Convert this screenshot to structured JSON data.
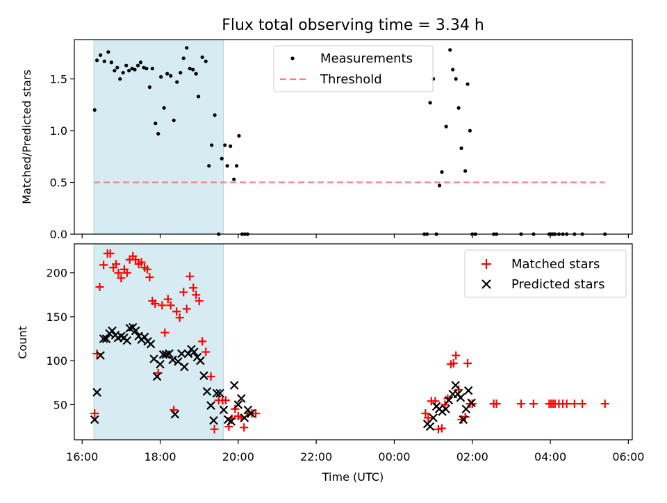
{
  "title": "Flux total observing time = 3.34 h",
  "colors": {
    "span": "#add8e6",
    "threshold": "#ff7f7f",
    "measurement": "#000000",
    "matched": "#ff0000",
    "predicted": "#000000"
  },
  "x_axis": {
    "label": "Time (UTC)",
    "range_hours": [
      15.8,
      30.1
    ],
    "ticks": [
      {
        "t": 16,
        "label": "16:00"
      },
      {
        "t": 18,
        "label": "18:00"
      },
      {
        "t": 20,
        "label": "20:00"
      },
      {
        "t": 22,
        "label": "22:00"
      },
      {
        "t": 24,
        "label": "00:00"
      },
      {
        "t": 26,
        "label": "02:00"
      },
      {
        "t": 28,
        "label": "04:00"
      },
      {
        "t": 30,
        "label": "06:00"
      }
    ]
  },
  "highlight_span_hours": [
    16.3,
    19.62
  ],
  "chart_data": [
    {
      "type": "scatter",
      "panel": "top",
      "ylabel": "Matched/Predicted stars",
      "ylim": [
        0,
        1.88
      ],
      "yticks": [
        {
          "v": 0.0,
          "label": "0.0"
        },
        {
          "v": 0.5,
          "label": "0.5"
        },
        {
          "v": 1.0,
          "label": "1.0"
        },
        {
          "v": 1.5,
          "label": "1.5"
        }
      ],
      "legend": {
        "position": "top-center",
        "measurements": "Measurements",
        "threshold": "Threshold"
      },
      "threshold": {
        "value": 0.5,
        "x_range": [
          16.3,
          29.4
        ]
      },
      "measurements": [
        [
          16.32,
          1.2
        ],
        [
          16.38,
          1.68
        ],
        [
          16.47,
          1.73
        ],
        [
          16.57,
          1.67
        ],
        [
          16.67,
          1.76
        ],
        [
          16.75,
          1.66
        ],
        [
          16.83,
          1.58
        ],
        [
          16.9,
          1.61
        ],
        [
          16.97,
          1.5
        ],
        [
          17.05,
          1.56
        ],
        [
          17.13,
          1.63
        ],
        [
          17.2,
          1.58
        ],
        [
          17.28,
          1.6
        ],
        [
          17.35,
          1.59
        ],
        [
          17.43,
          1.63
        ],
        [
          17.5,
          1.66
        ],
        [
          17.58,
          1.61
        ],
        [
          17.65,
          1.6
        ],
        [
          17.73,
          1.42
        ],
        [
          17.8,
          1.6
        ],
        [
          17.88,
          1.07
        ],
        [
          17.95,
          0.97
        ],
        [
          18.02,
          1.52
        ],
        [
          18.1,
          1.22
        ],
        [
          18.18,
          1.55
        ],
        [
          18.27,
          1.53
        ],
        [
          18.35,
          1.1
        ],
        [
          18.43,
          1.47
        ],
        [
          18.52,
          1.56
        ],
        [
          18.6,
          1.7
        ],
        [
          18.68,
          1.8
        ],
        [
          18.76,
          1.6
        ],
        [
          18.84,
          1.59
        ],
        [
          18.92,
          1.55
        ],
        [
          18.98,
          1.33
        ],
        [
          19.08,
          1.71
        ],
        [
          19.17,
          1.67
        ],
        [
          19.25,
          0.66
        ],
        [
          19.32,
          0.86
        ],
        [
          19.4,
          1.15
        ],
        [
          19.5,
          0.0
        ],
        [
          19.58,
          0.73
        ],
        [
          19.66,
          0.86
        ],
        [
          19.72,
          0.66
        ],
        [
          19.8,
          0.85
        ],
        [
          19.89,
          0.53
        ],
        [
          19.96,
          0.66
        ],
        [
          20.02,
          0.95
        ],
        [
          20.1,
          0.0
        ],
        [
          20.17,
          0.0
        ],
        [
          20.24,
          0.0
        ],
        [
          24.77,
          0.0
        ],
        [
          24.84,
          0.0
        ],
        [
          24.92,
          1.27
        ],
        [
          25.0,
          1.5
        ],
        [
          25.08,
          0.0
        ],
        [
          25.16,
          0.47
        ],
        [
          25.22,
          0.6
        ],
        [
          25.33,
          1.04
        ],
        [
          25.43,
          1.78
        ],
        [
          25.5,
          1.59
        ],
        [
          25.58,
          1.5
        ],
        [
          25.65,
          1.22
        ],
        [
          25.72,
          0.83
        ],
        [
          25.82,
          0.61
        ],
        [
          25.88,
          1.45
        ],
        [
          25.94,
          1.0
        ],
        [
          26.0,
          0.0
        ],
        [
          26.08,
          0.0
        ],
        [
          26.55,
          0.0
        ],
        [
          26.62,
          0.0
        ],
        [
          27.25,
          0.0
        ],
        [
          27.57,
          0.0
        ],
        [
          27.97,
          0.0
        ],
        [
          28.02,
          0.0
        ],
        [
          28.07,
          0.0
        ],
        [
          28.12,
          0.0
        ],
        [
          28.22,
          0.0
        ],
        [
          28.32,
          0.0
        ],
        [
          28.42,
          0.0
        ],
        [
          28.62,
          0.0
        ],
        [
          28.82,
          0.0
        ],
        [
          29.4,
          0.0
        ]
      ]
    },
    {
      "type": "scatter",
      "panel": "bottom",
      "ylabel": "Count",
      "ylim": [
        10,
        233
      ],
      "yticks": [
        {
          "v": 50,
          "label": "50"
        },
        {
          "v": 100,
          "label": "100"
        },
        {
          "v": 150,
          "label": "150"
        },
        {
          "v": 200,
          "label": "200"
        }
      ],
      "legend": {
        "position": "top-right",
        "matched": "Matched stars",
        "predicted": "Predicted stars"
      },
      "matched": [
        [
          16.32,
          40
        ],
        [
          16.38,
          108
        ],
        [
          16.45,
          184
        ],
        [
          16.55,
          209
        ],
        [
          16.65,
          222
        ],
        [
          16.72,
          222
        ],
        [
          16.8,
          206
        ],
        [
          16.87,
          210
        ],
        [
          16.93,
          200
        ],
        [
          17.0,
          194
        ],
        [
          17.08,
          204
        ],
        [
          17.15,
          200
        ],
        [
          17.22,
          215
        ],
        [
          17.3,
          219
        ],
        [
          17.37,
          215
        ],
        [
          17.45,
          210
        ],
        [
          17.52,
          212
        ],
        [
          17.6,
          206
        ],
        [
          17.67,
          204
        ],
        [
          17.73,
          195
        ],
        [
          17.8,
          168
        ],
        [
          17.87,
          165
        ],
        [
          17.95,
          86
        ],
        [
          18.05,
          163
        ],
        [
          18.12,
          132
        ],
        [
          18.2,
          170
        ],
        [
          18.27,
          163
        ],
        [
          18.35,
          44
        ],
        [
          18.42,
          156
        ],
        [
          18.5,
          149
        ],
        [
          18.6,
          178
        ],
        [
          18.68,
          159
        ],
        [
          18.76,
          196
        ],
        [
          18.85,
          183
        ],
        [
          18.92,
          175
        ],
        [
          19.0,
          168
        ],
        [
          19.08,
          122
        ],
        [
          19.17,
          110
        ],
        [
          19.3,
          82
        ],
        [
          19.39,
          22
        ],
        [
          19.5,
          55
        ],
        [
          19.6,
          55
        ],
        [
          19.68,
          55
        ],
        [
          19.76,
          25
        ],
        [
          19.84,
          34
        ],
        [
          19.92,
          45
        ],
        [
          20.0,
          37
        ],
        [
          20.08,
          35
        ],
        [
          20.15,
          24
        ],
        [
          20.25,
          40
        ],
        [
          20.35,
          40
        ],
        [
          20.45,
          40
        ],
        [
          24.8,
          40
        ],
        [
          24.87,
          35
        ],
        [
          24.95,
          54
        ],
        [
          25.05,
          54
        ],
        [
          25.13,
          22
        ],
        [
          25.22,
          23
        ],
        [
          25.3,
          50
        ],
        [
          25.37,
          57
        ],
        [
          25.45,
          96
        ],
        [
          25.52,
          97
        ],
        [
          25.58,
          106
        ],
        [
          25.65,
          67
        ],
        [
          25.73,
          33
        ],
        [
          25.82,
          36
        ],
        [
          25.88,
          97
        ],
        [
          25.94,
          51
        ],
        [
          26.0,
          51
        ],
        [
          26.55,
          51
        ],
        [
          26.62,
          51
        ],
        [
          27.25,
          51
        ],
        [
          27.57,
          51
        ],
        [
          27.97,
          51
        ],
        [
          28.02,
          51
        ],
        [
          28.07,
          51
        ],
        [
          28.12,
          51
        ],
        [
          28.22,
          51
        ],
        [
          28.32,
          51
        ],
        [
          28.42,
          51
        ],
        [
          28.62,
          51
        ],
        [
          28.82,
          51
        ],
        [
          29.4,
          51
        ]
      ],
      "predicted": [
        [
          16.32,
          33
        ],
        [
          16.38,
          64
        ],
        [
          16.47,
          106
        ],
        [
          16.55,
          125
        ],
        [
          16.62,
          125
        ],
        [
          16.7,
          131
        ],
        [
          16.77,
          134
        ],
        [
          16.85,
          129
        ],
        [
          16.92,
          126
        ],
        [
          17.0,
          128
        ],
        [
          17.07,
          126
        ],
        [
          17.15,
          123
        ],
        [
          17.22,
          137
        ],
        [
          17.3,
          138
        ],
        [
          17.37,
          134
        ],
        [
          17.45,
          128
        ],
        [
          17.52,
          124
        ],
        [
          17.6,
          127
        ],
        [
          17.68,
          122
        ],
        [
          17.76,
          119
        ],
        [
          17.84,
          102
        ],
        [
          17.92,
          82
        ],
        [
          18.0,
          96
        ],
        [
          18.08,
          107
        ],
        [
          18.15,
          107
        ],
        [
          18.23,
          108
        ],
        [
          18.32,
          101
        ],
        [
          18.38,
          39
        ],
        [
          18.46,
          99
        ],
        [
          18.55,
          108
        ],
        [
          18.62,
          93
        ],
        [
          18.72,
          108
        ],
        [
          18.8,
          113
        ],
        [
          18.87,
          110
        ],
        [
          18.95,
          104
        ],
        [
          19.03,
          100
        ],
        [
          19.12,
          83
        ],
        [
          19.2,
          65
        ],
        [
          19.3,
          49
        ],
        [
          19.37,
          32
        ],
        [
          19.45,
          63
        ],
        [
          19.53,
          63
        ],
        [
          19.63,
          44
        ],
        [
          19.74,
          33
        ],
        [
          19.82,
          31
        ],
        [
          19.9,
          72
        ],
        [
          20.0,
          50
        ],
        [
          20.08,
          57
        ],
        [
          20.16,
          35
        ],
        [
          20.25,
          44
        ],
        [
          20.33,
          40
        ],
        [
          24.85,
          28
        ],
        [
          24.92,
          25
        ],
        [
          25.0,
          35
        ],
        [
          25.08,
          48
        ],
        [
          25.15,
          45
        ],
        [
          25.23,
          42
        ],
        [
          25.32,
          45
        ],
        [
          25.4,
          55
        ],
        [
          25.5,
          62
        ],
        [
          25.57,
          72
        ],
        [
          25.63,
          62
        ],
        [
          25.7,
          58
        ],
        [
          25.77,
          33
        ],
        [
          25.84,
          45
        ],
        [
          25.9,
          66
        ],
        [
          25.98,
          52
        ]
      ]
    }
  ]
}
